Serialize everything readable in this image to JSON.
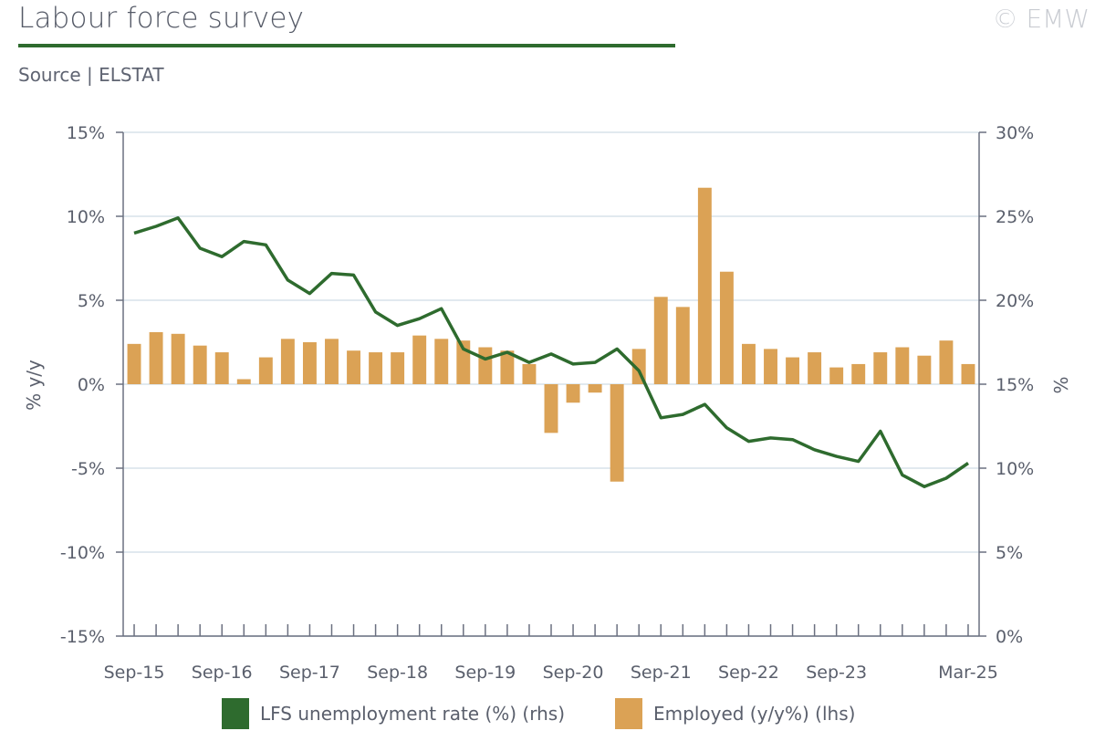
{
  "header": {
    "title": "Labour force survey",
    "source": "Source | ELSTAT",
    "copyright": "© EMW"
  },
  "colors": {
    "bars": "#dba255",
    "line": "#2e6b2e",
    "grid": "#d7e2ea",
    "axis": "#6b7080"
  },
  "legend": {
    "line_label": "LFS unemployment rate (%) (rhs)",
    "bar_label": "Employed (y/y%) (lhs)"
  },
  "chart_data": {
    "type": "bar+line",
    "x_tick_labels": [
      "Sep-15",
      "Sep-16",
      "Sep-17",
      "Sep-18",
      "Sep-19",
      "Sep-20",
      "Sep-21",
      "Sep-22",
      "Sep-23",
      "Mar-25"
    ],
    "left_axis": {
      "label": "% y/y",
      "ylim": [
        -15,
        15
      ],
      "ticks": [
        "15%",
        "10%",
        "5%",
        "0%",
        "-5%",
        "-10%",
        "-15%"
      ]
    },
    "right_axis": {
      "label": "%",
      "ylim": [
        0,
        30
      ],
      "ticks": [
        "30%",
        "25%",
        "20%",
        "15%",
        "10%",
        "5%",
        "0%"
      ]
    },
    "grid": true,
    "legend_position": "bottom",
    "series": [
      {
        "name": "Employed (y/y%) (lhs)",
        "type": "bar",
        "axis": "left",
        "values": [
          2.4,
          3.1,
          3.0,
          2.3,
          1.9,
          0.3,
          1.6,
          2.7,
          2.5,
          2.7,
          2.0,
          1.9,
          1.9,
          2.9,
          2.7,
          2.6,
          2.2,
          2.0,
          1.2,
          -2.9,
          -1.1,
          -0.5,
          -5.8,
          2.1,
          5.2,
          4.6,
          11.7,
          6.7,
          2.4,
          2.1,
          1.6,
          1.9,
          1.0,
          1.2,
          1.9,
          2.2,
          1.7,
          2.6,
          1.2
        ]
      },
      {
        "name": "LFS unemployment rate (%) (rhs)",
        "type": "line",
        "axis": "right",
        "values": [
          24.0,
          24.4,
          24.9,
          23.1,
          22.6,
          23.5,
          23.3,
          21.2,
          20.4,
          21.6,
          21.5,
          19.3,
          18.5,
          18.9,
          19.5,
          17.1,
          16.5,
          16.9,
          16.3,
          16.8,
          16.2,
          16.3,
          17.1,
          15.8,
          13.0,
          13.2,
          13.8,
          12.4,
          11.6,
          11.8,
          11.7,
          11.1,
          10.7,
          10.4,
          12.2,
          9.6,
          8.9,
          9.4,
          10.3
        ]
      }
    ]
  }
}
